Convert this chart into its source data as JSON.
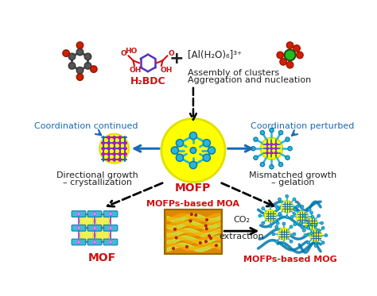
{
  "bg_color": "#ffffff",
  "text_blue": "#1a6ab5",
  "text_red": "#cc1111",
  "text_dark": "#222222",
  "yellow": "#ffff00",
  "yellow_dark": "#e0e000",
  "cyan": "#29b6d8",
  "cyan_dark": "#0077aa",
  "magenta": "#cc00cc",
  "purple_line": "#9966cc",
  "green_al": "#22bb22",
  "red_o": "#cc2200",
  "gray_c": "#555555",
  "labels": {
    "h2bdc": "H₂BDC",
    "al_complex": "[Al(H₂O)₆]³⁺",
    "assembly1": "Assembly of clusters",
    "assembly2": "Aggregation and nucleation",
    "mofp": "MOFP",
    "coord_continued": "Coordination continued",
    "coord_perturbed": "Coordination perturbed",
    "directional1": "Directional growth",
    "directional2": "– crystallization",
    "mismatched1": "Mismatched growth",
    "mismatched2": "– gelation",
    "mof": "MOF",
    "moa": "MOFPs-based MOA",
    "mog": "MOFPs-based MOG",
    "co2": "CO₂",
    "extraction": "extraction"
  }
}
